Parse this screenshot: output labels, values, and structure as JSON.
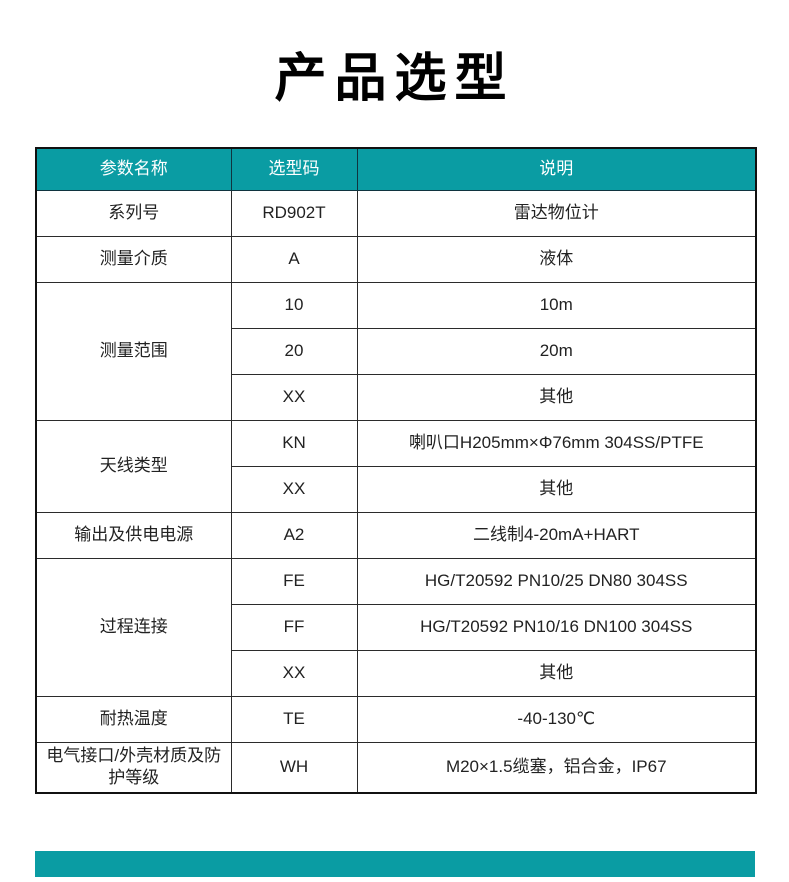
{
  "page": {
    "title": "产品选型"
  },
  "colors": {
    "accent_teal": "#0a9ca3",
    "header_text": "#ffffff",
    "body_text": "#222222",
    "border": "#2b2b2b"
  },
  "table": {
    "headers": [
      "参数名称",
      "选型码",
      "说明"
    ],
    "groups": [
      {
        "name": "系列号",
        "rows": [
          {
            "code": "RD902T",
            "desc": "雷达物位计"
          }
        ]
      },
      {
        "name": "测量介质",
        "rows": [
          {
            "code": "A",
            "desc": "液体"
          }
        ]
      },
      {
        "name": "测量范围",
        "rows": [
          {
            "code": "10",
            "desc": "10m"
          },
          {
            "code": "20",
            "desc": "20m"
          },
          {
            "code": "XX",
            "desc": "其他"
          }
        ]
      },
      {
        "name": "天线类型",
        "rows": [
          {
            "code": "KN",
            "desc": "喇叭口H205mm×Φ76mm 304SS/PTFE"
          },
          {
            "code": "XX",
            "desc": "其他"
          }
        ]
      },
      {
        "name": "输出及供电电源",
        "rows": [
          {
            "code": "A2",
            "desc": "二线制4-20mA+HART"
          }
        ]
      },
      {
        "name": "过程连接",
        "rows": [
          {
            "code": "FE",
            "desc": "HG/T20592 PN10/25 DN80 304SS"
          },
          {
            "code": "FF",
            "desc": "HG/T20592 PN10/16 DN100 304SS"
          },
          {
            "code": "XX",
            "desc": "其他"
          }
        ]
      },
      {
        "name": "耐热温度",
        "rows": [
          {
            "code": "TE",
            "desc": "-40-130℃"
          }
        ]
      },
      {
        "name": "电气接口/外壳材质及防护等级",
        "rows": [
          {
            "code": "WH",
            "desc": "M20×1.5缆塞，铝合金，IP67"
          }
        ]
      }
    ]
  }
}
